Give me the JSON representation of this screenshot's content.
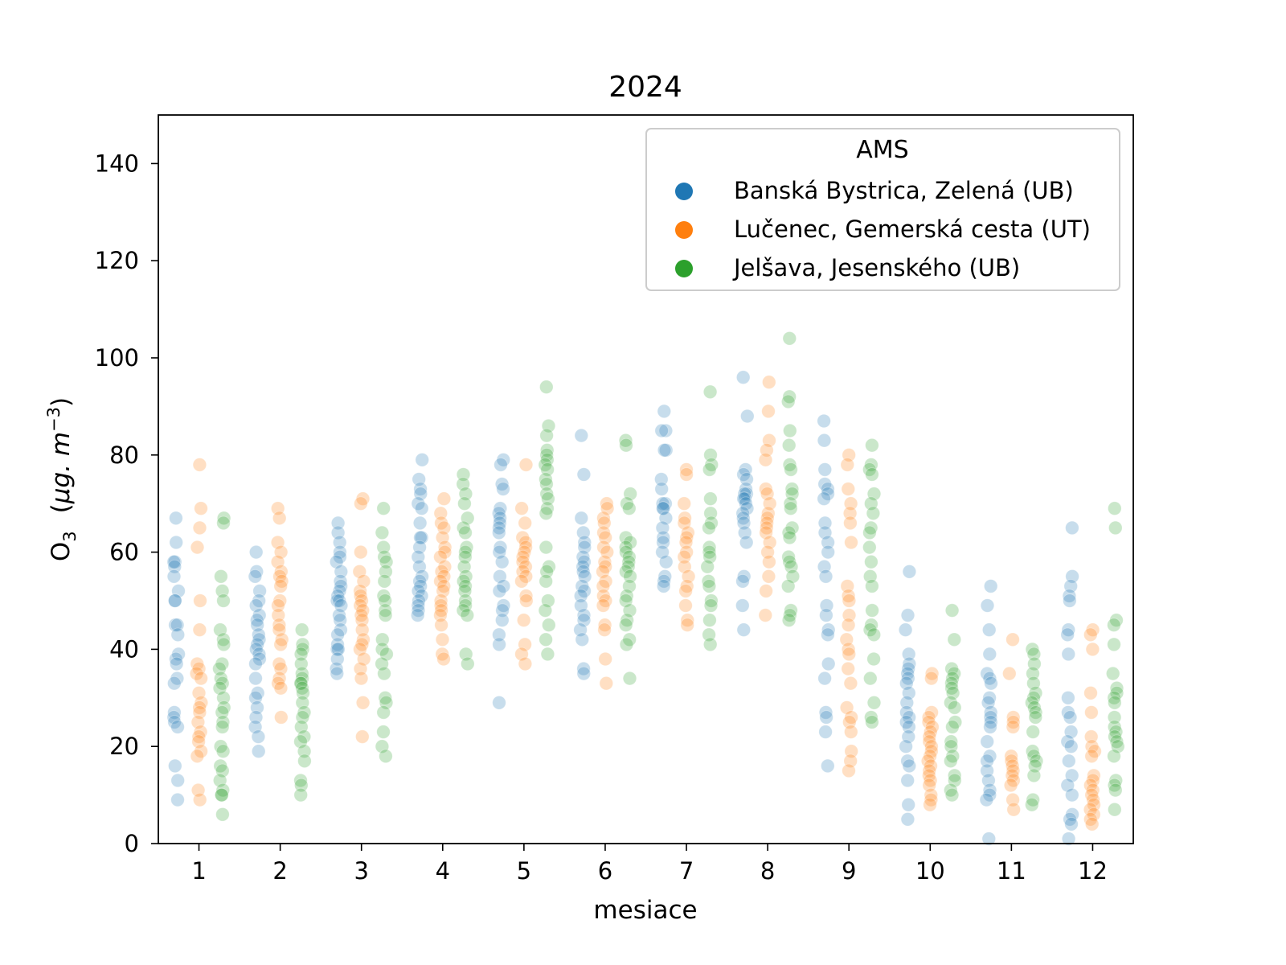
{
  "chart_data": {
    "type": "scatter",
    "title": "2024",
    "xlabel": "mesiace",
    "ylabel_main": "O",
    "ylabel_sub": "3",
    "ylabel_unit_prefix": "(",
    "ylabel_unit_mu": "μg",
    "ylabel_unit_mid": ". m",
    "ylabel_unit_exp": "−3",
    "ylabel_unit_suffix": ")",
    "xlim": [
      0.5,
      12.5
    ],
    "ylim": [
      0,
      150
    ],
    "x_ticks": [
      1,
      2,
      3,
      4,
      5,
      6,
      7,
      8,
      9,
      10,
      11,
      12
    ],
    "x_tick_labels": [
      "1",
      "2",
      "3",
      "4",
      "5",
      "6",
      "7",
      "8",
      "9",
      "10",
      "11",
      "12"
    ],
    "y_ticks": [
      0,
      20,
      40,
      60,
      80,
      100,
      120,
      140
    ],
    "y_tick_labels": [
      "0",
      "20",
      "40",
      "60",
      "80",
      "100",
      "120",
      "140"
    ],
    "grid": false,
    "legend": {
      "title": "AMS",
      "placement": "top-right"
    },
    "point_opacity": 0.25,
    "dodge_offset": 0.28,
    "series": [
      {
        "name": "Banská Bystrica, Zelená (UB)",
        "color": "#1f77b4",
        "values": [
          [
            67,
            62,
            58,
            58,
            57,
            55,
            52,
            50,
            50,
            45,
            45,
            43,
            39,
            38,
            37,
            34,
            33,
            27,
            26,
            25,
            24,
            16,
            13,
            9
          ],
          [
            60,
            56,
            55,
            52,
            50,
            49,
            47,
            46,
            45,
            43,
            42,
            41,
            40,
            39,
            38,
            37,
            34,
            31,
            30,
            28,
            26,
            24,
            22,
            19
          ],
          [
            66,
            64,
            62,
            60,
            59,
            58,
            56,
            54,
            53,
            52,
            51,
            50,
            50,
            49,
            47,
            46,
            44,
            43,
            41,
            40,
            40,
            38,
            36,
            35
          ],
          [
            79,
            75,
            73,
            72,
            70,
            69,
            66,
            63,
            63,
            61,
            59,
            57,
            55,
            54,
            53,
            52,
            51,
            50,
            49,
            48,
            47
          ],
          [
            79,
            78,
            74,
            73,
            69,
            68,
            67,
            66,
            65,
            64,
            61,
            60,
            58,
            55,
            53,
            52,
            49,
            48,
            46,
            43,
            41,
            29
          ],
          [
            84,
            76,
            67,
            64,
            62,
            61,
            59,
            58,
            57,
            56,
            55,
            53,
            52,
            51,
            49,
            47,
            46,
            44,
            42,
            36,
            35
          ],
          [
            89,
            85,
            85,
            81,
            81,
            75,
            73,
            70,
            70,
            69,
            69,
            67,
            65,
            63,
            62,
            60,
            58,
            55,
            54,
            53
          ],
          [
            96,
            88,
            77,
            76,
            75,
            73,
            72,
            72,
            71,
            71,
            70,
            69,
            68,
            67,
            66,
            64,
            62,
            55,
            54,
            49,
            44
          ],
          [
            87,
            83,
            77,
            74,
            73,
            72,
            71,
            66,
            64,
            62,
            60,
            57,
            55,
            49,
            47,
            44,
            43,
            37,
            34,
            27,
            26,
            23,
            16
          ],
          [
            56,
            47,
            44,
            39,
            37,
            36,
            35,
            34,
            33,
            31,
            29,
            27,
            26,
            25,
            24,
            22,
            20,
            17,
            16,
            13,
            8,
            5
          ],
          [
            53,
            49,
            44,
            39,
            35,
            34,
            33,
            30,
            29,
            27,
            26,
            25,
            24,
            21,
            18,
            17,
            15,
            13,
            11,
            10,
            9,
            1
          ],
          [
            65,
            55,
            53,
            51,
            50,
            44,
            43,
            39,
            30,
            27,
            26,
            23,
            21,
            20,
            17,
            14,
            12,
            10,
            6,
            5,
            4,
            1
          ]
        ]
      },
      {
        "name": "Lučenec, Gemerská cesta (UT)",
        "color": "#ff7f0e",
        "values": [
          [
            78,
            69,
            65,
            61,
            50,
            44,
            37,
            36,
            35,
            34,
            31,
            29,
            28,
            27,
            25,
            23,
            22,
            21,
            19,
            18,
            11,
            9
          ],
          [
            69,
            67,
            62,
            60,
            58,
            56,
            55,
            54,
            53,
            50,
            49,
            47,
            45,
            44,
            42,
            41,
            37,
            36,
            34,
            33,
            32,
            26
          ],
          [
            71,
            70,
            60,
            56,
            54,
            52,
            51,
            50,
            49,
            48,
            47,
            46,
            44,
            42,
            41,
            40,
            38,
            36,
            34,
            29,
            22
          ],
          [
            71,
            68,
            66,
            65,
            63,
            61,
            60,
            59,
            57,
            56,
            55,
            54,
            53,
            52,
            50,
            49,
            48,
            47,
            45,
            42,
            39,
            38
          ],
          [
            78,
            69,
            66,
            63,
            62,
            61,
            60,
            59,
            58,
            57,
            56,
            55,
            54,
            51,
            50,
            46,
            41,
            39,
            37
          ],
          [
            70,
            69,
            67,
            66,
            64,
            63,
            61,
            60,
            58,
            57,
            56,
            54,
            53,
            51,
            50,
            49,
            45,
            44,
            38,
            33
          ],
          [
            77,
            76,
            70,
            67,
            66,
            64,
            63,
            62,
            60,
            59,
            57,
            55,
            53,
            52,
            49,
            46,
            45
          ],
          [
            95,
            89,
            83,
            81,
            79,
            73,
            72,
            70,
            68,
            67,
            66,
            65,
            64,
            62,
            60,
            58,
            55,
            52,
            47
          ],
          [
            80,
            78,
            73,
            70,
            68,
            66,
            62,
            53,
            51,
            50,
            47,
            45,
            42,
            40,
            39,
            36,
            33,
            28,
            26,
            25,
            23,
            19,
            17,
            15
          ],
          [
            35,
            34,
            27,
            26,
            25,
            24,
            23,
            22,
            21,
            20,
            19,
            18,
            17,
            16,
            15,
            14,
            13,
            12,
            10,
            9,
            8
          ],
          [
            42,
            35,
            26,
            25,
            24,
            18,
            17,
            16,
            15,
            14,
            13,
            12,
            9,
            7
          ],
          [
            44,
            43,
            40,
            31,
            27,
            22,
            20,
            19,
            18,
            14,
            13,
            12,
            11,
            10,
            9,
            8,
            7,
            6,
            5,
            4
          ]
        ]
      },
      {
        "name": "Jelšava, Jesenského (UB)",
        "color": "#2ca02c",
        "values": [
          [
            67,
            66,
            55,
            52,
            50,
            44,
            42,
            41,
            37,
            36,
            34,
            33,
            32,
            30,
            28,
            27,
            25,
            24,
            20,
            19,
            16,
            15,
            13,
            11,
            10,
            10,
            6
          ],
          [
            44,
            41,
            40,
            39,
            37,
            35,
            34,
            33,
            33,
            32,
            31,
            29,
            27,
            26,
            24,
            22,
            21,
            19,
            17,
            13,
            12,
            10
          ],
          [
            69,
            64,
            61,
            59,
            58,
            56,
            54,
            51,
            50,
            48,
            47,
            42,
            40,
            39,
            37,
            35,
            30,
            29,
            27,
            23,
            20,
            18
          ],
          [
            76,
            74,
            72,
            70,
            67,
            65,
            64,
            61,
            60,
            59,
            57,
            55,
            54,
            53,
            52,
            50,
            49,
            48,
            47,
            39,
            37
          ],
          [
            94,
            86,
            84,
            81,
            80,
            79,
            78,
            77,
            75,
            74,
            72,
            71,
            69,
            68,
            61,
            57,
            56,
            54,
            50,
            48,
            45,
            42,
            39
          ],
          [
            83,
            82,
            72,
            70,
            69,
            63,
            62,
            61,
            60,
            59,
            58,
            57,
            56,
            55,
            53,
            51,
            50,
            48,
            46,
            45,
            42,
            41,
            34
          ],
          [
            93,
            80,
            78,
            77,
            71,
            68,
            66,
            65,
            61,
            60,
            59,
            57,
            54,
            53,
            50,
            49,
            46,
            43,
            41
          ],
          [
            104,
            92,
            91,
            85,
            82,
            78,
            77,
            73,
            72,
            70,
            69,
            65,
            64,
            63,
            59,
            58,
            57,
            55,
            53,
            48,
            47,
            46
          ],
          [
            82,
            78,
            77,
            76,
            72,
            70,
            68,
            65,
            64,
            61,
            58,
            55,
            53,
            48,
            45,
            44,
            43,
            38,
            34,
            29,
            26,
            25
          ],
          [
            48,
            42,
            36,
            35,
            34,
            33,
            32,
            31,
            29,
            28,
            25,
            24,
            21,
            20,
            18,
            17,
            14,
            13,
            11,
            10
          ],
          [
            40,
            39,
            37,
            35,
            33,
            31,
            30,
            29,
            28,
            27,
            26,
            23,
            19,
            18,
            17,
            16,
            14,
            9,
            8
          ],
          [
            69,
            65,
            46,
            45,
            41,
            35,
            32,
            31,
            30,
            29,
            26,
            24,
            23,
            22,
            21,
            20,
            18,
            13,
            12,
            11,
            7
          ]
        ]
      }
    ]
  }
}
